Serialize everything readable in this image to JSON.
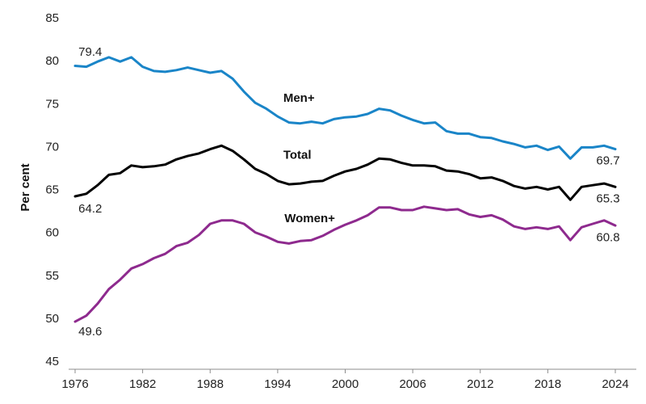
{
  "chart_data": {
    "type": "line",
    "ylabel": "Per cent",
    "ylim": [
      45,
      85
    ],
    "yticks": [
      "45",
      "50",
      "55",
      "60",
      "65",
      "70",
      "75",
      "80",
      "85"
    ],
    "xlim": [
      1976,
      2024
    ],
    "xticks": [
      "1976",
      "1982",
      "1988",
      "1994",
      "2000",
      "2006",
      "2012",
      "2018",
      "2024"
    ],
    "grid": false,
    "x": [
      1976,
      1977,
      1978,
      1979,
      1980,
      1981,
      1982,
      1983,
      1984,
      1985,
      1986,
      1987,
      1988,
      1989,
      1990,
      1991,
      1992,
      1993,
      1994,
      1995,
      1996,
      1997,
      1998,
      1999,
      2000,
      2001,
      2002,
      2003,
      2004,
      2005,
      2006,
      2007,
      2008,
      2009,
      2010,
      2011,
      2012,
      2013,
      2014,
      2015,
      2016,
      2017,
      2018,
      2019,
      2020,
      2021,
      2022,
      2023,
      2024
    ],
    "series": [
      {
        "name": "Men+",
        "color": "#1a85c8",
        "values": [
          79.4,
          79.3,
          79.9,
          80.4,
          79.9,
          80.4,
          79.3,
          78.8,
          78.7,
          78.9,
          79.2,
          78.9,
          78.6,
          78.8,
          77.9,
          76.4,
          75.1,
          74.4,
          73.5,
          72.8,
          72.7,
          72.9,
          72.7,
          73.2,
          73.4,
          73.5,
          73.8,
          74.4,
          74.2,
          73.6,
          73.1,
          72.7,
          72.8,
          71.8,
          71.5,
          71.5,
          71.1,
          71.0,
          70.6,
          70.3,
          69.9,
          70.1,
          69.6,
          70.0,
          68.6,
          69.9,
          69.9,
          70.1,
          69.7
        ],
        "labels": {
          "start": "79.4",
          "end": "69.7"
        }
      },
      {
        "name": "Total",
        "color": "#000000",
        "values": [
          64.2,
          64.5,
          65.5,
          66.7,
          66.9,
          67.8,
          67.6,
          67.7,
          67.9,
          68.5,
          68.9,
          69.2,
          69.7,
          70.1,
          69.5,
          68.5,
          67.4,
          66.8,
          66.0,
          65.6,
          65.7,
          65.9,
          66.0,
          66.6,
          67.1,
          67.4,
          67.9,
          68.6,
          68.5,
          68.1,
          67.8,
          67.8,
          67.7,
          67.2,
          67.1,
          66.8,
          66.3,
          66.4,
          66.0,
          65.4,
          65.1,
          65.3,
          65.0,
          65.3,
          63.8,
          65.3,
          65.5,
          65.7,
          65.3
        ],
        "labels": {
          "start": "64.2",
          "end": "65.3"
        }
      },
      {
        "name": "Women+",
        "color": "#8e2a8e",
        "values": [
          49.6,
          50.3,
          51.7,
          53.4,
          54.5,
          55.8,
          56.3,
          57.0,
          57.5,
          58.4,
          58.8,
          59.7,
          61.0,
          61.4,
          61.4,
          61.0,
          60.0,
          59.5,
          58.9,
          58.7,
          59.0,
          59.1,
          59.6,
          60.3,
          60.9,
          61.4,
          62.0,
          62.9,
          62.9,
          62.6,
          62.6,
          63.0,
          62.8,
          62.6,
          62.7,
          62.1,
          61.8,
          62.0,
          61.5,
          60.7,
          60.4,
          60.6,
          60.4,
          60.7,
          59.1,
          60.6,
          61.0,
          61.4,
          60.8
        ],
        "labels": {
          "start": "49.6",
          "end": "60.8"
        }
      }
    ]
  }
}
